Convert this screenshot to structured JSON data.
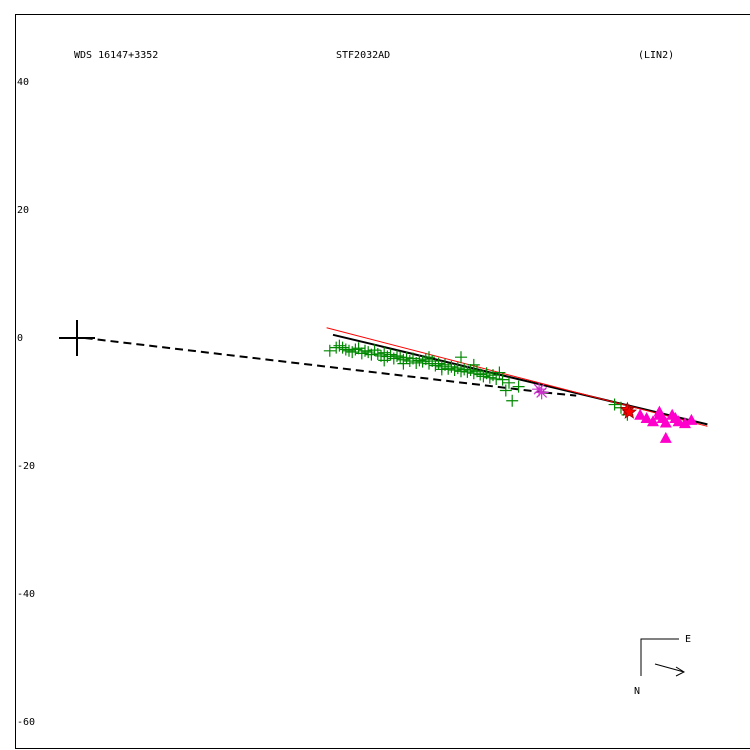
{
  "header": {
    "left": "WDS 16147+3352",
    "center": "STF2032AD",
    "right": "(LIN2)"
  },
  "compass": {
    "east_label": "E",
    "north_label": "N"
  },
  "chart_data": {
    "type": "scatter",
    "title": "STF2032AD",
    "xlabel": "",
    "ylabel": "",
    "y_ticks": [
      40,
      20,
      0,
      -20,
      -40,
      -60
    ],
    "y_tick_labels": [
      "40",
      "20",
      "0",
      "-20",
      "-40",
      "-60"
    ],
    "ylim": [
      -62,
      50
    ],
    "xlim": [
      -9,
      103
    ],
    "grid": false,
    "primary": {
      "x": 0,
      "y": 0,
      "marker": "large-cross"
    },
    "series": [
      {
        "marker": "plus",
        "color": "#008800",
        "points": [
          [
            39.5,
            -2.0
          ],
          [
            40.5,
            -1.5
          ],
          [
            41,
            -1.2
          ],
          [
            41.5,
            -1.5
          ],
          [
            42,
            -1.8
          ],
          [
            42.5,
            -2.0
          ],
          [
            43,
            -2.2
          ],
          [
            43.5,
            -1.8
          ],
          [
            44,
            -1.6
          ],
          [
            44.5,
            -2.4
          ],
          [
            45,
            -2.0
          ],
          [
            45.5,
            -2.2
          ],
          [
            46,
            -2.6
          ],
          [
            46.5,
            -1.9
          ],
          [
            47,
            -2.5
          ],
          [
            47.5,
            -2.8
          ],
          [
            48,
            -2.3
          ],
          [
            48.5,
            -2.9
          ],
          [
            49,
            -2.6
          ],
          [
            49.5,
            -3.2
          ],
          [
            50,
            -2.8
          ],
          [
            50.5,
            -3.0
          ],
          [
            51,
            -3.4
          ],
          [
            51.5,
            -3.1
          ],
          [
            52,
            -3.6
          ],
          [
            52.5,
            -3.2
          ],
          [
            53,
            -3.9
          ],
          [
            53.5,
            -3.5
          ],
          [
            54,
            -3.7
          ],
          [
            54.5,
            -3.3
          ],
          [
            55,
            -4.0
          ],
          [
            55.5,
            -3.6
          ],
          [
            56,
            -4.3
          ],
          [
            56.5,
            -4.0
          ],
          [
            57,
            -4.5
          ],
          [
            57.5,
            -4.2
          ],
          [
            58,
            -4.8
          ],
          [
            58.5,
            -4.5
          ],
          [
            59,
            -5.0
          ],
          [
            59.5,
            -4.7
          ],
          [
            60,
            -5.2
          ],
          [
            60.5,
            -4.9
          ],
          [
            61,
            -5.3
          ],
          [
            61.5,
            -5.0
          ],
          [
            62,
            -5.5
          ],
          [
            62.5,
            -5.2
          ],
          [
            63,
            -5.7
          ],
          [
            63.5,
            -6.0
          ],
          [
            64,
            -5.5
          ],
          [
            64.5,
            -6.2
          ],
          [
            65,
            -5.8
          ],
          [
            65.5,
            -6.4
          ],
          [
            66,
            -5.4
          ],
          [
            66.5,
            -6.5
          ],
          [
            67,
            -8.2
          ],
          [
            67.5,
            -7.0
          ],
          [
            51,
            -4.0
          ],
          [
            48,
            -3.5
          ],
          [
            60,
            -3.0
          ],
          [
            62,
            -4.2
          ],
          [
            68,
            -9.8
          ],
          [
            69,
            -7.6
          ],
          [
            84,
            -10.4
          ],
          [
            86,
            -12.0
          ],
          [
            85,
            -10.9
          ],
          [
            55,
            -3.0
          ],
          [
            57,
            -4.9
          ]
        ]
      },
      {
        "marker": "asterisk",
        "color": "#cc33cc",
        "points": [
          [
            72.2,
            -8.0
          ],
          [
            72.6,
            -8.5
          ]
        ]
      },
      {
        "marker": "star",
        "color": "#ff0000",
        "points": [
          [
            86.0,
            -11.2
          ],
          [
            86.3,
            -11.6
          ]
        ]
      },
      {
        "marker": "triangle",
        "color": "#ff00cc",
        "points": [
          [
            88,
            -12.0
          ],
          [
            89,
            -12.5
          ],
          [
            90,
            -13.0
          ],
          [
            91,
            -11.5
          ],
          [
            91.5,
            -12.5
          ],
          [
            92,
            -13.2
          ],
          [
            93,
            -12.0
          ],
          [
            94,
            -13.0
          ],
          [
            95,
            -13.3
          ],
          [
            96,
            -12.8
          ],
          [
            92,
            -15.6
          ],
          [
            91,
            -12.0
          ],
          [
            93.5,
            -12.5
          ]
        ]
      }
    ],
    "lines": [
      {
        "style": "solid",
        "color": "#000000",
        "width": 2,
        "points": [
          [
            40,
            0.5
          ],
          [
            98.5,
            -13.5
          ]
        ]
      },
      {
        "style": "solid",
        "color": "#ff0000",
        "width": 1,
        "points": [
          [
            39,
            1.6
          ],
          [
            98.5,
            -13.8
          ]
        ]
      },
      {
        "style": "dashed",
        "color": "#000000",
        "width": 2,
        "points": [
          [
            1.2,
            0
          ],
          [
            73,
            -8.5
          ]
        ]
      },
      {
        "style": "dashed",
        "color": "#000000",
        "width": 2,
        "points": [
          [
            73,
            -8.5
          ],
          [
            78,
            -9.0
          ]
        ]
      }
    ]
  }
}
